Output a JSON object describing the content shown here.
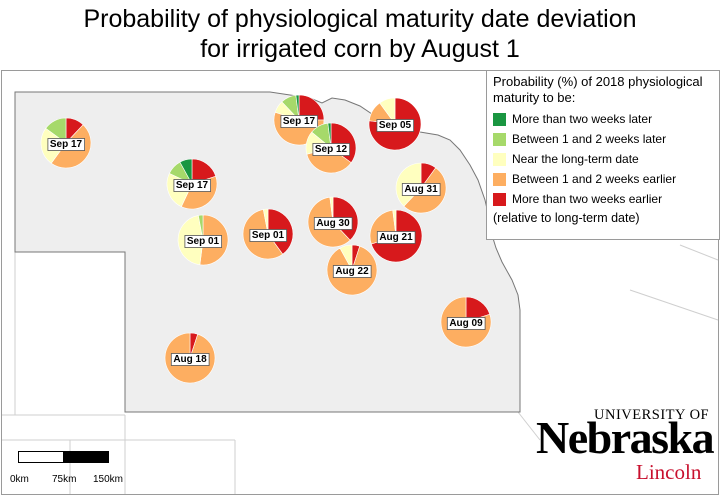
{
  "title_line1": "Probability of physiological maturity date deviation",
  "title_line2": "for irrigated corn by August 1",
  "legend": {
    "title": "Probability (%) of 2018 physiological maturity to be:",
    "categories": [
      {
        "label": "More than two weeks later",
        "color": "#1a9641"
      },
      {
        "label": "Between 1 and 2 weeks later",
        "color": "#a6d96a"
      },
      {
        "label": "Near the long-term date",
        "color": "#ffffbf"
      },
      {
        "label": "Between 1 and 2 weeks earlier",
        "color": "#fdae61"
      },
      {
        "label": "More than two weeks earlier",
        "color": "#d7191c"
      }
    ],
    "note": "(relative to long-term date)"
  },
  "chart_data": {
    "type": "pie-map",
    "series_order": [
      "More than two weeks later",
      "Between 1 and 2 weeks later",
      "Near the long-term date",
      "Between 1 and 2 weeks earlier",
      "More than two weeks earlier"
    ],
    "sites": [
      {
        "label": "Sep 17",
        "values": [
          0,
          15,
          25,
          48,
          12
        ]
      },
      {
        "label": "Sep 17",
        "values": [
          8,
          10,
          25,
          37,
          20
        ]
      },
      {
        "label": "Sep 17",
        "values": [
          2,
          10,
          8,
          55,
          25
        ]
      },
      {
        "label": "Sep 12",
        "values": [
          2,
          12,
          15,
          36,
          35
        ]
      },
      {
        "label": "Sep 05",
        "values": [
          0,
          0,
          10,
          13,
          77
        ]
      },
      {
        "label": "Sep 01",
        "values": [
          0,
          3,
          45,
          52,
          0
        ]
      },
      {
        "label": "Sep 01",
        "values": [
          0,
          0,
          3,
          57,
          40
        ]
      },
      {
        "label": "Aug 30",
        "values": [
          0,
          0,
          2,
          60,
          38
        ]
      },
      {
        "label": "Aug 31",
        "values": [
          0,
          0,
          38,
          52,
          10
        ]
      },
      {
        "label": "Aug 21",
        "values": [
          0,
          0,
          2,
          28,
          70
        ]
      },
      {
        "label": "Aug 22",
        "values": [
          0,
          0,
          8,
          87,
          5
        ]
      },
      {
        "label": "Aug 09",
        "values": [
          0,
          0,
          0,
          80,
          20
        ]
      },
      {
        "label": "Aug 18",
        "values": [
          0,
          0,
          0,
          95,
          5
        ]
      }
    ]
  },
  "scale_bar": {
    "labels": [
      "0km",
      "75km",
      "150km"
    ]
  },
  "logo": {
    "university": "UNIVERSITY OF",
    "name": "Nebraska",
    "campus": "Lincoln"
  }
}
